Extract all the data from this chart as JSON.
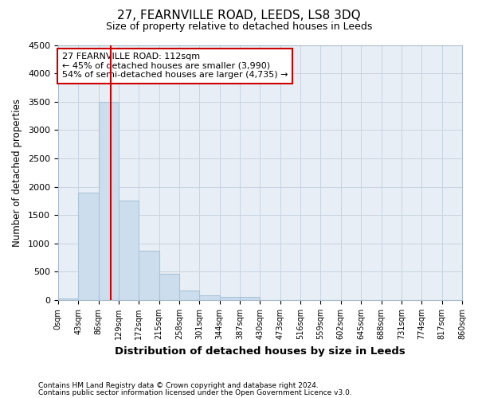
{
  "title": "27, FEARNVILLE ROAD, LEEDS, LS8 3DQ",
  "subtitle": "Size of property relative to detached houses in Leeds",
  "xlabel": "Distribution of detached houses by size in Leeds",
  "ylabel": "Number of detached properties",
  "footnote1": "Contains HM Land Registry data © Crown copyright and database right 2024.",
  "footnote2": "Contains public sector information licensed under the Open Government Licence v3.0.",
  "bar_edges": [
    0,
    43,
    86,
    129,
    172,
    215,
    258,
    301,
    344,
    387,
    430,
    473,
    516,
    559,
    602,
    645,
    688,
    731,
    774,
    817,
    860
  ],
  "bar_heights": [
    30,
    1900,
    3500,
    1750,
    870,
    460,
    170,
    90,
    60,
    55,
    0,
    0,
    0,
    0,
    0,
    0,
    0,
    0,
    0,
    0
  ],
  "bar_color": "#ccdded",
  "bar_edgecolor": "#aac4d8",
  "vline_x": 112,
  "vline_color": "#cc0000",
  "ylim": [
    0,
    4500
  ],
  "yticks": [
    0,
    500,
    1000,
    1500,
    2000,
    2500,
    3000,
    3500,
    4000,
    4500
  ],
  "annotation_text": "27 FEARNVILLE ROAD: 112sqm\n← 45% of detached houses are smaller (3,990)\n54% of semi-detached houses are larger (4,735) →",
  "annotation_box_facecolor": "#ffffff",
  "annotation_box_edgecolor": "#cc0000",
  "grid_color": "#c8d4e0",
  "background_color": "#ffffff",
  "plot_bg_color": "#e8eef5"
}
